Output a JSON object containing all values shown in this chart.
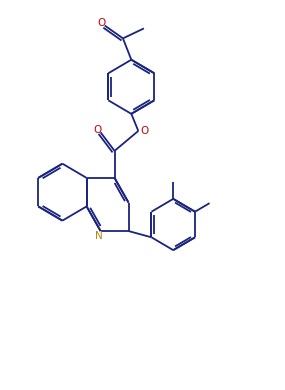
{
  "bg_color": "#ffffff",
  "bond_color": "#1a237e",
  "o_color": "#cc0000",
  "n_color": "#b8860b",
  "lw": 1.3,
  "figsize": [
    2.85,
    3.9
  ],
  "dpi": 100,
  "xlim": [
    0,
    10
  ],
  "ylim": [
    0,
    13.5
  ]
}
